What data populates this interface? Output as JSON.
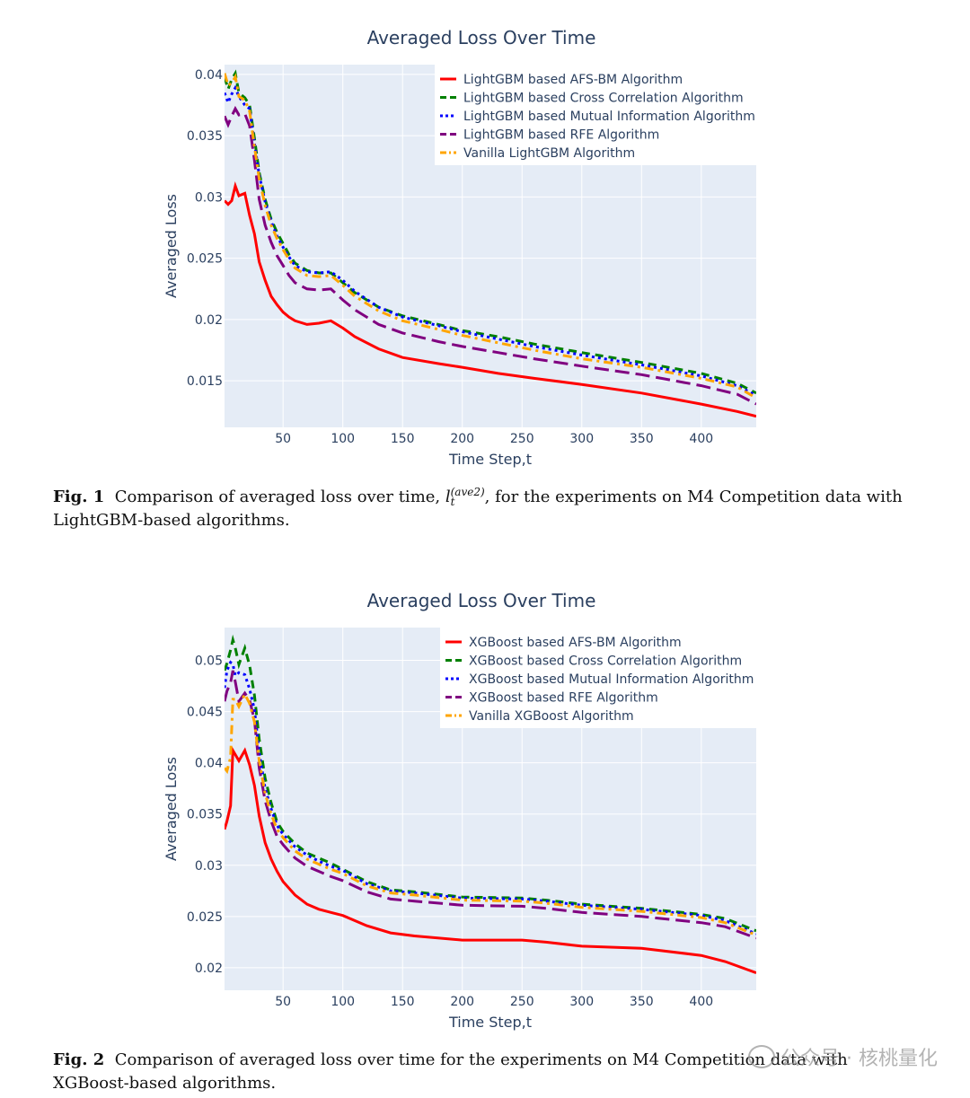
{
  "figures": [
    {
      "caption": {
        "label": "Fig. 1",
        "text_before": "Comparison of averaged loss over time, ",
        "math_base": "l",
        "math_sup": "(ave2)",
        "math_sub": "t",
        "text_after": ", for the experiments on M4 Competition data with LightGBM-based algorithms."
      }
    },
    {
      "caption": {
        "label": "Fig. 2",
        "text": "Comparison of averaged loss over time for the experiments on M4 Competition data with XGBoost-based algorithms."
      }
    }
  ],
  "watermark": {
    "text": "公众号 · 核桃量化"
  },
  "chart_data": [
    {
      "type": "line",
      "title": "Averaged Loss Over Time",
      "xlabel": "Time Step,t",
      "ylabel": "Averaged Loss",
      "xlim": [
        1,
        446
      ],
      "ylim": [
        0.0112,
        0.0408
      ],
      "xticks": [
        50,
        100,
        150,
        200,
        250,
        300,
        350,
        400
      ],
      "yticks": [
        0.015,
        0.02,
        0.025,
        0.03,
        0.035,
        0.04
      ],
      "ytick_labels": [
        "0.015",
        "0.02",
        "0.025",
        "0.03",
        "0.035",
        "0.04"
      ],
      "grid": true,
      "legend_position": "top-right",
      "series": [
        {
          "name": "LightGBM based AFS-BM Algorithm",
          "color": "#ff0000",
          "dash": "solid",
          "x": [
            1,
            4,
            7,
            10,
            13,
            18,
            22,
            26,
            30,
            35,
            40,
            45,
            50,
            55,
            60,
            70,
            80,
            90,
            100,
            110,
            130,
            150,
            180,
            200,
            230,
            260,
            300,
            350,
            400,
            430,
            446
          ],
          "y": [
            0.0297,
            0.0294,
            0.0297,
            0.0309,
            0.0301,
            0.0303,
            0.0285,
            0.027,
            0.0247,
            0.0232,
            0.0219,
            0.0212,
            0.0206,
            0.0202,
            0.0199,
            0.0196,
            0.0197,
            0.0199,
            0.0193,
            0.0186,
            0.0176,
            0.0169,
            0.0164,
            0.0161,
            0.0156,
            0.0152,
            0.0147,
            0.014,
            0.0131,
            0.0125,
            0.0121
          ]
        },
        {
          "name": "LightGBM based Cross Correlation Algorithm",
          "color": "#008000",
          "dash": "dash",
          "x": [
            1,
            4,
            7,
            10,
            13,
            18,
            22,
            26,
            30,
            35,
            40,
            45,
            50,
            55,
            60,
            70,
            80,
            90,
            100,
            110,
            130,
            150,
            180,
            200,
            230,
            260,
            300,
            350,
            400,
            430,
            446
          ],
          "y": [
            0.0398,
            0.0388,
            0.0396,
            0.0401,
            0.0385,
            0.0381,
            0.0375,
            0.0348,
            0.032,
            0.0298,
            0.0282,
            0.0271,
            0.0262,
            0.0253,
            0.0246,
            0.024,
            0.0238,
            0.0238,
            0.023,
            0.0222,
            0.021,
            0.0203,
            0.0196,
            0.0191,
            0.0186,
            0.018,
            0.0173,
            0.0165,
            0.0156,
            0.0148,
            0.014
          ]
        },
        {
          "name": "LightGBM based Mutual Information Algorithm",
          "color": "#0000ff",
          "dash": "dot",
          "x": [
            1,
            4,
            7,
            10,
            13,
            18,
            22,
            26,
            30,
            35,
            40,
            45,
            50,
            55,
            60,
            70,
            80,
            90,
            100,
            110,
            130,
            150,
            180,
            200,
            230,
            260,
            300,
            350,
            400,
            430,
            446
          ],
          "y": [
            0.0385,
            0.0377,
            0.0384,
            0.0389,
            0.0382,
            0.0375,
            0.0372,
            0.0344,
            0.0318,
            0.0296,
            0.028,
            0.0268,
            0.0259,
            0.0251,
            0.0244,
            0.0239,
            0.0238,
            0.0239,
            0.0232,
            0.0223,
            0.021,
            0.0202,
            0.0195,
            0.019,
            0.0184,
            0.0178,
            0.0171,
            0.0163,
            0.0154,
            0.0146,
            0.0138
          ]
        },
        {
          "name": "LightGBM based RFE Algorithm",
          "color": "#800080",
          "dash": "longdash",
          "x": [
            1,
            4,
            7,
            10,
            13,
            18,
            22,
            26,
            30,
            35,
            40,
            45,
            50,
            55,
            60,
            70,
            80,
            90,
            100,
            110,
            130,
            150,
            180,
            200,
            230,
            260,
            300,
            350,
            400,
            430,
            446
          ],
          "y": [
            0.0366,
            0.0359,
            0.0366,
            0.0372,
            0.0367,
            0.0368,
            0.0358,
            0.033,
            0.0298,
            0.0277,
            0.0263,
            0.0252,
            0.0244,
            0.0236,
            0.023,
            0.0225,
            0.0224,
            0.0225,
            0.0216,
            0.0208,
            0.0196,
            0.0189,
            0.0182,
            0.0178,
            0.0173,
            0.0168,
            0.0162,
            0.0155,
            0.0146,
            0.0139,
            0.0131
          ]
        },
        {
          "name": "Vanilla LightGBM Algorithm",
          "color": "#ffa500",
          "dash": "dashdot",
          "x": [
            1,
            4,
            7,
            10,
            13,
            18,
            22,
            26,
            30,
            35,
            40,
            45,
            50,
            55,
            60,
            70,
            80,
            90,
            100,
            110,
            130,
            150,
            180,
            200,
            230,
            260,
            300,
            350,
            400,
            430,
            446
          ],
          "y": [
            0.0401,
            0.0391,
            0.0393,
            0.0398,
            0.0382,
            0.0379,
            0.037,
            0.0341,
            0.0315,
            0.0293,
            0.0277,
            0.0266,
            0.0257,
            0.0249,
            0.0242,
            0.0236,
            0.0235,
            0.0236,
            0.0228,
            0.0219,
            0.0207,
            0.0199,
            0.0192,
            0.0187,
            0.0181,
            0.0175,
            0.0168,
            0.0161,
            0.0152,
            0.0145,
            0.0136
          ]
        }
      ]
    },
    {
      "type": "line",
      "title": "Averaged Loss Over Time",
      "xlabel": "Time Step,t",
      "ylabel": "Averaged Loss",
      "xlim": [
        1,
        446
      ],
      "ylim": [
        0.0178,
        0.0532
      ],
      "xticks": [
        50,
        100,
        150,
        200,
        250,
        300,
        350,
        400
      ],
      "yticks": [
        0.02,
        0.025,
        0.03,
        0.035,
        0.04,
        0.045,
        0.05
      ],
      "ytick_labels": [
        "0.02",
        "0.025",
        "0.03",
        "0.035",
        "0.04",
        "0.045",
        "0.05"
      ],
      "grid": true,
      "legend_position": "top-right",
      "series": [
        {
          "name": "XGBoost based AFS-BM Algorithm",
          "color": "#ff0000",
          "dash": "solid",
          "x": [
            1,
            3,
            6,
            8,
            10,
            13,
            18,
            22,
            26,
            30,
            35,
            40,
            45,
            50,
            60,
            70,
            80,
            90,
            100,
            120,
            140,
            160,
            200,
            250,
            270,
            300,
            350,
            400,
            420,
            446
          ],
          "y": [
            0.0335,
            0.0343,
            0.0358,
            0.0412,
            0.0408,
            0.0402,
            0.0412,
            0.0398,
            0.0378,
            0.0348,
            0.0322,
            0.0306,
            0.0294,
            0.0284,
            0.0271,
            0.0262,
            0.0257,
            0.0254,
            0.0251,
            0.0241,
            0.0234,
            0.0231,
            0.0227,
            0.0227,
            0.0225,
            0.0221,
            0.0219,
            0.0212,
            0.0206,
            0.0195
          ]
        },
        {
          "name": "XGBoost based Cross Correlation Algorithm",
          "color": "#008000",
          "dash": "dash",
          "x": [
            1,
            3,
            6,
            8,
            10,
            13,
            18,
            22,
            26,
            30,
            35,
            40,
            45,
            50,
            60,
            70,
            80,
            90,
            100,
            120,
            140,
            160,
            200,
            250,
            270,
            300,
            350,
            400,
            420,
            446
          ],
          "y": [
            0.049,
            0.0497,
            0.051,
            0.052,
            0.0512,
            0.0496,
            0.0512,
            0.0495,
            0.0466,
            0.0423,
            0.0385,
            0.0361,
            0.0342,
            0.0333,
            0.0321,
            0.0312,
            0.0307,
            0.0302,
            0.0296,
            0.0284,
            0.0276,
            0.0274,
            0.0269,
            0.0268,
            0.0266,
            0.0262,
            0.0258,
            0.0252,
            0.0248,
            0.0236
          ]
        },
        {
          "name": "XGBoost based Mutual Information Algorithm",
          "color": "#0000ff",
          "dash": "dot",
          "x": [
            1,
            3,
            6,
            8,
            10,
            13,
            18,
            22,
            26,
            30,
            35,
            40,
            45,
            50,
            60,
            70,
            80,
            90,
            100,
            120,
            140,
            160,
            200,
            250,
            270,
            300,
            350,
            400,
            420,
            446
          ],
          "y": [
            0.0473,
            0.049,
            0.0498,
            0.0496,
            0.0485,
            0.0488,
            0.0486,
            0.0472,
            0.0452,
            0.041,
            0.0375,
            0.0355,
            0.0339,
            0.033,
            0.0318,
            0.031,
            0.0304,
            0.0299,
            0.0295,
            0.0282,
            0.0275,
            0.0273,
            0.0268,
            0.0267,
            0.0265,
            0.0261,
            0.0257,
            0.0251,
            0.0246,
            0.0233
          ]
        },
        {
          "name": "XGBoost based RFE Algorithm",
          "color": "#800080",
          "dash": "longdash",
          "x": [
            1,
            3,
            6,
            8,
            10,
            13,
            18,
            22,
            26,
            30,
            35,
            40,
            45,
            50,
            60,
            70,
            80,
            90,
            100,
            120,
            140,
            160,
            200,
            250,
            270,
            300,
            350,
            400,
            420,
            446
          ],
          "y": [
            0.046,
            0.047,
            0.0478,
            0.049,
            0.0479,
            0.046,
            0.0468,
            0.0461,
            0.0442,
            0.0395,
            0.0363,
            0.0343,
            0.0328,
            0.032,
            0.0307,
            0.0299,
            0.0294,
            0.0289,
            0.0285,
            0.0274,
            0.0267,
            0.0265,
            0.0261,
            0.026,
            0.0258,
            0.0254,
            0.025,
            0.0244,
            0.024,
            0.0229
          ]
        },
        {
          "name": "Vanilla XGBoost Algorithm",
          "color": "#ffa500",
          "dash": "dashdot",
          "x": [
            1,
            3,
            6,
            8,
            10,
            13,
            18,
            22,
            26,
            30,
            35,
            40,
            45,
            50,
            60,
            70,
            80,
            90,
            100,
            120,
            140,
            160,
            200,
            250,
            270,
            300,
            350,
            400,
            420,
            446
          ],
          "y": [
            0.0395,
            0.0392,
            0.0405,
            0.0462,
            0.0462,
            0.0455,
            0.0467,
            0.0458,
            0.044,
            0.0402,
            0.037,
            0.035,
            0.0335,
            0.0327,
            0.0314,
            0.0306,
            0.0301,
            0.0296,
            0.0292,
            0.028,
            0.0273,
            0.0271,
            0.0266,
            0.0265,
            0.0263,
            0.0259,
            0.0255,
            0.0249,
            0.0244,
            0.0232
          ]
        }
      ]
    }
  ]
}
